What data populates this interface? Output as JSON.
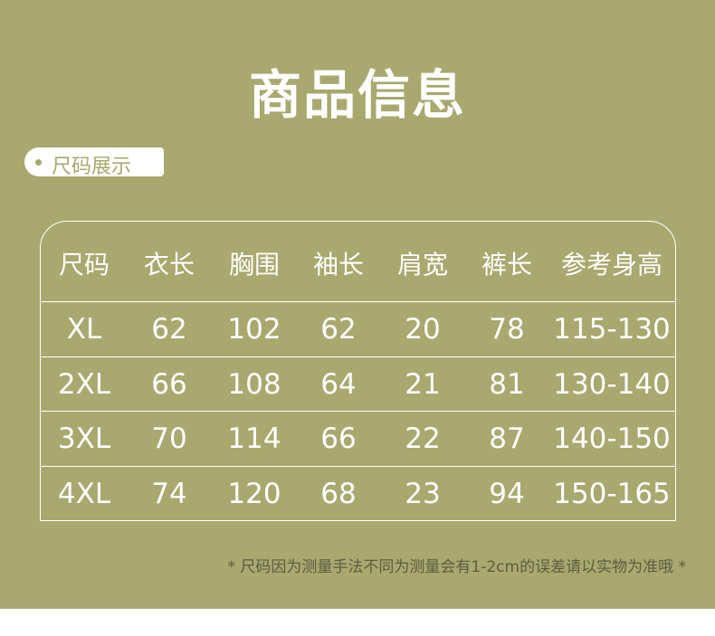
{
  "title": "商品信息",
  "section_tag": "尺码展示",
  "table": {
    "headers": [
      "尺码",
      "衣长",
      "胸围",
      "袖长",
      "肩宽",
      "裤长",
      "参考身高"
    ],
    "rows": [
      [
        "XL",
        "62",
        "102",
        "62",
        "20",
        "78",
        "115-130"
      ],
      [
        "2XL",
        "66",
        "108",
        "64",
        "21",
        "81",
        "130-140"
      ],
      [
        "3XL",
        "70",
        "114",
        "66",
        "22",
        "87",
        "140-150"
      ],
      [
        "4XL",
        "74",
        "120",
        "68",
        "23",
        "94",
        "150-165"
      ]
    ]
  },
  "note": "* 尺码因为测量手法不同为测量会有1-2cm的误差请以实物为准哦 *",
  "colors": {
    "background": "#a9a86f",
    "text": "#ffffff"
  }
}
